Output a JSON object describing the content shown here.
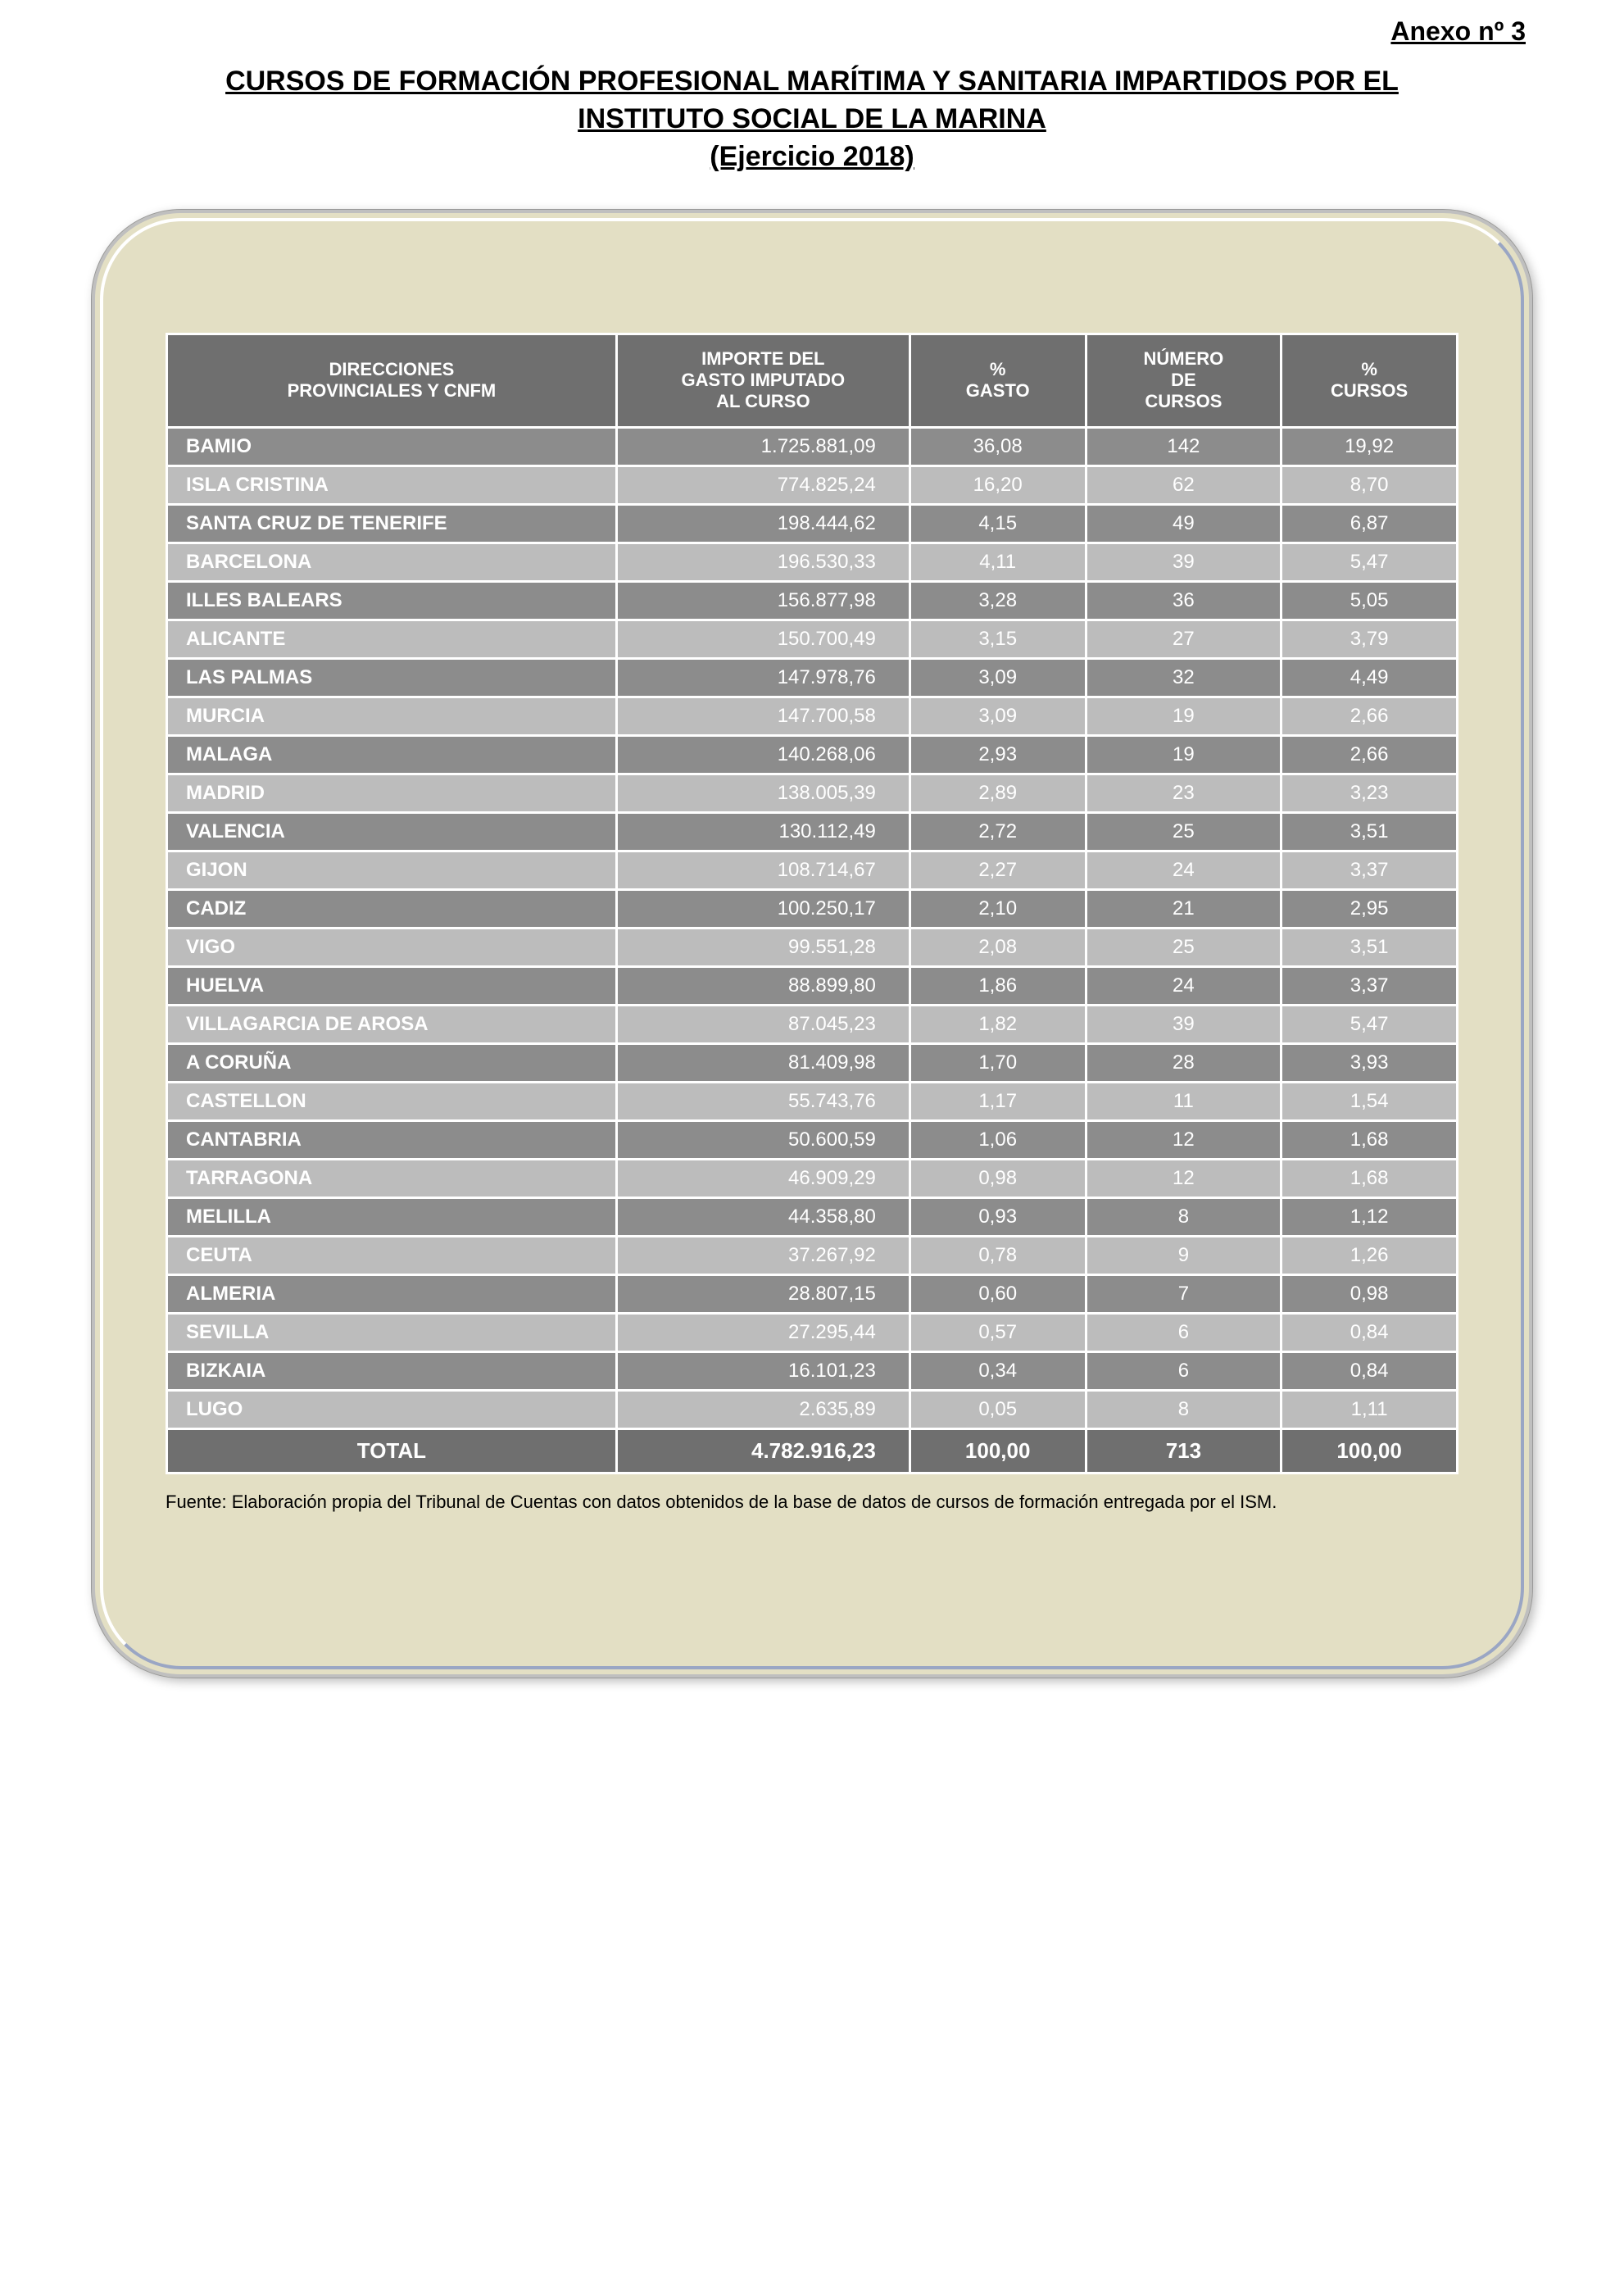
{
  "anexo": "Anexo nº 3",
  "title_line1": "CURSOS DE FORMACIÓN PROFESIONAL MARÍTIMA Y SANITARIA IMPARTIDOS POR EL",
  "title_line2": "INSTITUTO SOCIAL DE LA MARINA",
  "title_line3": "(Ejercicio 2018)",
  "columns": {
    "c1a": "DIRECCIONES",
    "c1b": "PROVINCIALES Y CNFM",
    "c2a": "IMPORTE DEL",
    "c2b": "GASTO IMPUTADO",
    "c2c": "AL CURSO",
    "c3a": "%",
    "c3b": "GASTO",
    "c4a": "NÚMERO",
    "c4b": "DE",
    "c4c": "CURSOS",
    "c5a": "%",
    "c5b": "CURSOS"
  },
  "rows": [
    {
      "dir": "BAMIO",
      "imp": "1.725.881,09",
      "pg": "36,08",
      "nc": "142",
      "pc": "19,92"
    },
    {
      "dir": "ISLA CRISTINA",
      "imp": "774.825,24",
      "pg": "16,20",
      "nc": "62",
      "pc": "8,70"
    },
    {
      "dir": "SANTA CRUZ DE TENERIFE",
      "imp": "198.444,62",
      "pg": "4,15",
      "nc": "49",
      "pc": "6,87"
    },
    {
      "dir": "BARCELONA",
      "imp": "196.530,33",
      "pg": "4,11",
      "nc": "39",
      "pc": "5,47"
    },
    {
      "dir": "ILLES BALEARS",
      "imp": "156.877,98",
      "pg": "3,28",
      "nc": "36",
      "pc": "5,05"
    },
    {
      "dir": "ALICANTE",
      "imp": "150.700,49",
      "pg": "3,15",
      "nc": "27",
      "pc": "3,79"
    },
    {
      "dir": "LAS PALMAS",
      "imp": "147.978,76",
      "pg": "3,09",
      "nc": "32",
      "pc": "4,49"
    },
    {
      "dir": "MURCIA",
      "imp": "147.700,58",
      "pg": "3,09",
      "nc": "19",
      "pc": "2,66"
    },
    {
      "dir": "MALAGA",
      "imp": "140.268,06",
      "pg": "2,93",
      "nc": "19",
      "pc": "2,66"
    },
    {
      "dir": "MADRID",
      "imp": "138.005,39",
      "pg": "2,89",
      "nc": "23",
      "pc": "3,23"
    },
    {
      "dir": "VALENCIA",
      "imp": "130.112,49",
      "pg": "2,72",
      "nc": "25",
      "pc": "3,51"
    },
    {
      "dir": "GIJON",
      "imp": "108.714,67",
      "pg": "2,27",
      "nc": "24",
      "pc": "3,37"
    },
    {
      "dir": "CADIZ",
      "imp": "100.250,17",
      "pg": "2,10",
      "nc": "21",
      "pc": "2,95"
    },
    {
      "dir": "VIGO",
      "imp": "99.551,28",
      "pg": "2,08",
      "nc": "25",
      "pc": "3,51"
    },
    {
      "dir": "HUELVA",
      "imp": "88.899,80",
      "pg": "1,86",
      "nc": "24",
      "pc": "3,37"
    },
    {
      "dir": "VILLAGARCIA DE AROSA",
      "imp": "87.045,23",
      "pg": "1,82",
      "nc": "39",
      "pc": "5,47"
    },
    {
      "dir": "A CORUÑA",
      "imp": "81.409,98",
      "pg": "1,70",
      "nc": "28",
      "pc": "3,93"
    },
    {
      "dir": "CASTELLON",
      "imp": "55.743,76",
      "pg": "1,17",
      "nc": "11",
      "pc": "1,54"
    },
    {
      "dir": "CANTABRIA",
      "imp": "50.600,59",
      "pg": "1,06",
      "nc": "12",
      "pc": "1,68"
    },
    {
      "dir": "TARRAGONA",
      "imp": "46.909,29",
      "pg": "0,98",
      "nc": "12",
      "pc": "1,68"
    },
    {
      "dir": "MELILLA",
      "imp": "44.358,80",
      "pg": "0,93",
      "nc": "8",
      "pc": "1,12"
    },
    {
      "dir": "CEUTA",
      "imp": "37.267,92",
      "pg": "0,78",
      "nc": "9",
      "pc": "1,26"
    },
    {
      "dir": "ALMERIA",
      "imp": "28.807,15",
      "pg": "0,60",
      "nc": "7",
      "pc": "0,98"
    },
    {
      "dir": "SEVILLA",
      "imp": "27.295,44",
      "pg": "0,57",
      "nc": "6",
      "pc": "0,84"
    },
    {
      "dir": "BIZKAIA",
      "imp": "16.101,23",
      "pg": "0,34",
      "nc": "6",
      "pc": "0,84"
    },
    {
      "dir": "LUGO",
      "imp": "2.635,89",
      "pg": "0,05",
      "nc": "8",
      "pc": "1,11"
    }
  ],
  "total": {
    "label": "TOTAL",
    "imp": "4.782.916,23",
    "pg": "100,00",
    "nc": "713",
    "pc": "100,00"
  },
  "fuente": "Fuente: Elaboración propia del Tribunal de Cuentas con datos obtenidos de la base de datos de cursos de formación entregada por el ISM.",
  "colors": {
    "panel_bg": "#e3dfc4",
    "header_bg": "#6f6f6f",
    "row_dark": "#8c8c8c",
    "row_light": "#bcbcbc"
  }
}
